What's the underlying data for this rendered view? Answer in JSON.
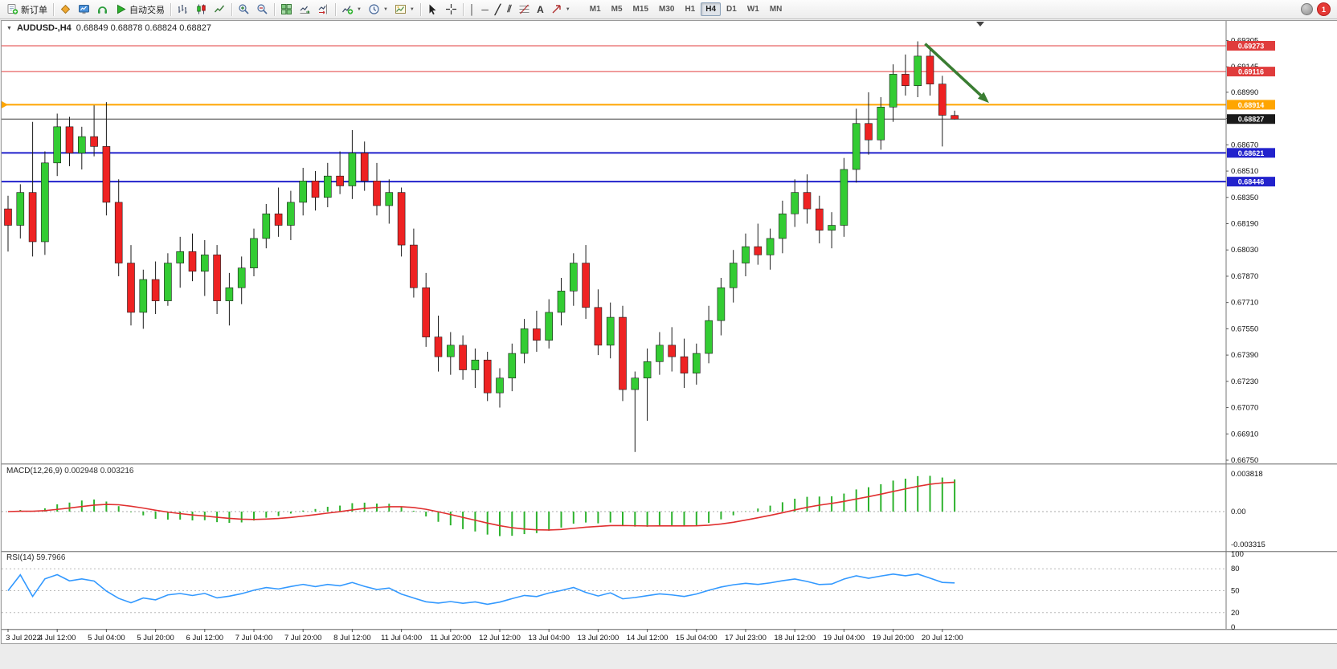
{
  "toolbar": {
    "new_order": "新订单",
    "autotrading": "自动交易",
    "timeframes": [
      "M1",
      "M5",
      "M15",
      "M30",
      "H1",
      "H4",
      "D1",
      "W1",
      "MN"
    ],
    "active_timeframe": "H4",
    "notification_count": "1"
  },
  "icons": {
    "vline": "│",
    "hline": "─",
    "trendline": "╱",
    "channel": "⫽",
    "text_tool": "A",
    "caret": "▼",
    "collapse": "▼"
  },
  "chart": {
    "title": "AUDUSD-,H4",
    "ohlc": "0.68849 0.68878 0.68824 0.68827",
    "macd_label": "MACD(12,26,9)",
    "macd_values": "0.002948 0.003216",
    "rsi_label": "RSI(14)",
    "rsi_value": "59.7966"
  },
  "chart_data": {
    "type": "candlestick",
    "symbol": "AUDUSD-",
    "timeframe": "H4",
    "current_bar": {
      "open": 0.68849,
      "high": 0.68878,
      "low": 0.68824,
      "close": 0.68827
    },
    "colors": {
      "up": "#33cc33",
      "down": "#ee2222",
      "wick": "#1a1a1a",
      "macd_hist": "#2db22d",
      "macd_signal": "#e03030",
      "rsi_line": "#3399ff"
    },
    "price_axis": {
      "ticks": [
        0.69305,
        0.69145,
        0.6899,
        0.6883,
        0.6867,
        0.6851,
        0.6835,
        0.6819,
        0.6803,
        0.6787,
        0.6771,
        0.6755,
        0.6739,
        0.6723,
        0.6707,
        0.6691,
        0.6675
      ]
    },
    "hlines": [
      {
        "price": 0.69273,
        "color": "#e03c3c",
        "badge": "0.69273",
        "width": 1
      },
      {
        "price": 0.69116,
        "color": "#e03c3c",
        "badge": "0.69116",
        "width": 1
      },
      {
        "price": 0.68914,
        "color": "#ffa500",
        "badge": "0.68914",
        "width": 2,
        "left_marker": true
      },
      {
        "price": 0.68827,
        "color": "#3c3c3c",
        "badge": "0.68827",
        "width": 1,
        "role": "bid"
      },
      {
        "price": 0.68621,
        "color": "#2222cc",
        "badge": "0.68621",
        "width": 2
      },
      {
        "price": 0.68446,
        "color": "#2222cc",
        "badge": "0.68446",
        "width": 2
      }
    ],
    "time_labels": [
      "3 Jul 2022",
      "4 Jul 12:00",
      "5 Jul 04:00",
      "5 Jul 20:00",
      "6 Jul 12:00",
      "7 Jul 04:00",
      "7 Jul 20:00",
      "8 Jul 12:00",
      "11 Jul 04:00",
      "11 Jul 20:00",
      "12 Jul 12:00",
      "13 Jul 04:00",
      "13 Jul 20:00",
      "14 Jul 12:00",
      "15 Jul 04:00",
      "17 Jul 23:00",
      "18 Jul 12:00",
      "19 Jul 04:00",
      "19 Jul 20:00",
      "20 Jul 12:00"
    ],
    "candles": [
      [
        0.6828,
        0.6836,
        0.6802,
        0.6818
      ],
      [
        0.6818,
        0.6843,
        0.681,
        0.6838
      ],
      [
        0.6838,
        0.6881,
        0.6799,
        0.6808
      ],
      [
        0.6808,
        0.6863,
        0.68,
        0.6856
      ],
      [
        0.6856,
        0.6886,
        0.6848,
        0.6878
      ],
      [
        0.6878,
        0.6884,
        0.6854,
        0.6862
      ],
      [
        0.6862,
        0.6878,
        0.6852,
        0.6872
      ],
      [
        0.6872,
        0.6891,
        0.686,
        0.6866
      ],
      [
        0.6866,
        0.6893,
        0.6824,
        0.6832
      ],
      [
        0.6832,
        0.6846,
        0.6787,
        0.6795
      ],
      [
        0.6795,
        0.6806,
        0.6757,
        0.6765
      ],
      [
        0.6765,
        0.6791,
        0.6755,
        0.6785
      ],
      [
        0.6785,
        0.6796,
        0.6764,
        0.6772
      ],
      [
        0.6772,
        0.6801,
        0.6769,
        0.6795
      ],
      [
        0.6795,
        0.6811,
        0.678,
        0.6802
      ],
      [
        0.6802,
        0.6813,
        0.6784,
        0.679
      ],
      [
        0.679,
        0.6809,
        0.6775,
        0.68
      ],
      [
        0.68,
        0.6806,
        0.6764,
        0.6772
      ],
      [
        0.6772,
        0.6789,
        0.6757,
        0.678
      ],
      [
        0.678,
        0.6799,
        0.677,
        0.6792
      ],
      [
        0.6792,
        0.6816,
        0.6787,
        0.681
      ],
      [
        0.681,
        0.6831,
        0.6804,
        0.6825
      ],
      [
        0.6825,
        0.6841,
        0.6811,
        0.6818
      ],
      [
        0.6818,
        0.6839,
        0.6809,
        0.6832
      ],
      [
        0.6832,
        0.6853,
        0.6824,
        0.6845
      ],
      [
        0.6845,
        0.6851,
        0.6827,
        0.6835
      ],
      [
        0.6835,
        0.6856,
        0.6829,
        0.6848
      ],
      [
        0.6848,
        0.6863,
        0.6837,
        0.6842
      ],
      [
        0.6842,
        0.6876,
        0.6834,
        0.6862
      ],
      [
        0.6862,
        0.6869,
        0.6839,
        0.6845
      ],
      [
        0.6845,
        0.6856,
        0.6824,
        0.683
      ],
      [
        0.683,
        0.6846,
        0.6819,
        0.6838
      ],
      [
        0.6838,
        0.6841,
        0.6799,
        0.6806
      ],
      [
        0.6806,
        0.6816,
        0.6774,
        0.678
      ],
      [
        0.678,
        0.6789,
        0.6744,
        0.675
      ],
      [
        0.675,
        0.6763,
        0.6729,
        0.6738
      ],
      [
        0.6738,
        0.6753,
        0.6727,
        0.6745
      ],
      [
        0.6745,
        0.6751,
        0.6724,
        0.673
      ],
      [
        0.673,
        0.6743,
        0.6719,
        0.6736
      ],
      [
        0.6736,
        0.6741,
        0.6711,
        0.6716
      ],
      [
        0.6716,
        0.6731,
        0.6707,
        0.6725
      ],
      [
        0.6725,
        0.6746,
        0.6717,
        0.674
      ],
      [
        0.674,
        0.6761,
        0.6734,
        0.6755
      ],
      [
        0.6755,
        0.6766,
        0.6741,
        0.6748
      ],
      [
        0.6748,
        0.6773,
        0.6743,
        0.6765
      ],
      [
        0.6765,
        0.6786,
        0.6757,
        0.6778
      ],
      [
        0.6778,
        0.6801,
        0.6769,
        0.6795
      ],
      [
        0.6795,
        0.6806,
        0.6761,
        0.6768
      ],
      [
        0.6768,
        0.6779,
        0.6739,
        0.6745
      ],
      [
        0.6745,
        0.6771,
        0.6737,
        0.6762
      ],
      [
        0.6762,
        0.6769,
        0.6711,
        0.6718
      ],
      [
        0.6718,
        0.6729,
        0.668,
        0.6725
      ],
      [
        0.6725,
        0.6743,
        0.6699,
        0.6735
      ],
      [
        0.6735,
        0.6753,
        0.6727,
        0.6745
      ],
      [
        0.6745,
        0.6756,
        0.6729,
        0.6738
      ],
      [
        0.6738,
        0.6749,
        0.6719,
        0.6728
      ],
      [
        0.6728,
        0.6746,
        0.6721,
        0.674
      ],
      [
        0.674,
        0.6769,
        0.6734,
        0.676
      ],
      [
        0.676,
        0.6786,
        0.6751,
        0.678
      ],
      [
        0.678,
        0.6803,
        0.6771,
        0.6795
      ],
      [
        0.6795,
        0.6813,
        0.6787,
        0.6805
      ],
      [
        0.6805,
        0.6819,
        0.6794,
        0.68
      ],
      [
        0.68,
        0.6816,
        0.6791,
        0.681
      ],
      [
        0.681,
        0.6833,
        0.6801,
        0.6825
      ],
      [
        0.6825,
        0.6846,
        0.6817,
        0.6838
      ],
      [
        0.6838,
        0.6849,
        0.6819,
        0.6828
      ],
      [
        0.6828,
        0.6836,
        0.6807,
        0.6815
      ],
      [
        0.6815,
        0.6826,
        0.6804,
        0.6818
      ],
      [
        0.6818,
        0.6859,
        0.6811,
        0.6852
      ],
      [
        0.6852,
        0.6889,
        0.6844,
        0.688
      ],
      [
        0.688,
        0.6899,
        0.6861,
        0.687
      ],
      [
        0.687,
        0.6896,
        0.6864,
        0.689
      ],
      [
        0.689,
        0.6916,
        0.6881,
        0.691
      ],
      [
        0.691,
        0.6922,
        0.6897,
        0.6903
      ],
      [
        0.6903,
        0.693,
        0.6896,
        0.6921
      ],
      [
        0.6921,
        0.6925,
        0.6897,
        0.6904
      ],
      [
        0.6904,
        0.6909,
        0.6866,
        0.6885
      ],
      [
        0.68849,
        0.68878,
        0.68824,
        0.68827
      ]
    ],
    "annotation_arrow": {
      "from": {
        "candle": 74.6,
        "price": 0.69285
      },
      "to": {
        "candle": 79.8,
        "price": 0.68925
      },
      "color": "#3a7d32"
    },
    "macd": {
      "label": "MACD(12,26,9)",
      "values_text": "0.002948 0.003216",
      "fast": 12,
      "slow": 26,
      "signal": 9,
      "axis": [
        "0.003818",
        "0.00",
        "-0.003315"
      ],
      "axis_values": [
        0.003818,
        0,
        -0.003315
      ]
    },
    "rsi": {
      "label": "RSI(14)",
      "value_text": "59.7966",
      "period": 14,
      "axis": [
        "100",
        "80",
        "50",
        "20",
        "0"
      ],
      "axis_values": [
        100,
        80,
        50,
        20,
        0
      ],
      "levels": [
        80,
        50,
        20
      ]
    }
  }
}
